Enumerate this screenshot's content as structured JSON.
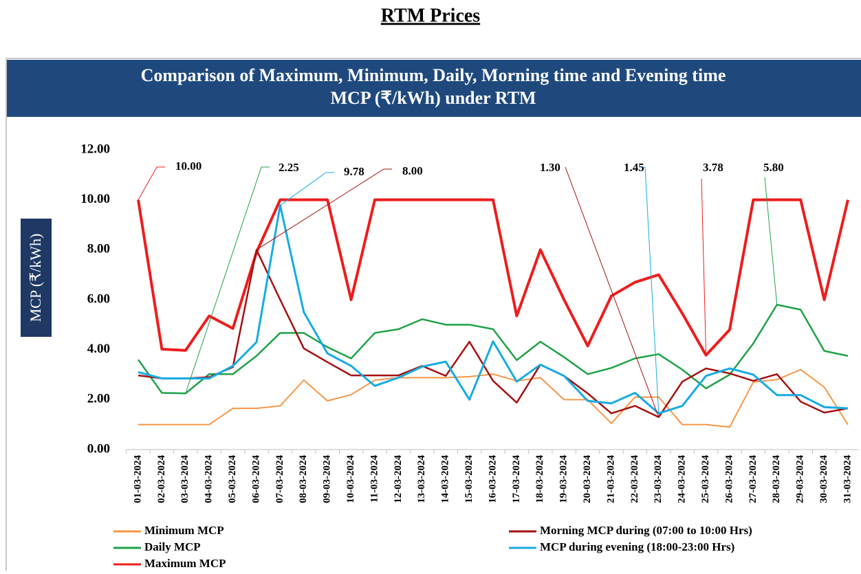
{
  "page_title": "RTM Prices",
  "chart_data": {
    "type": "line",
    "title": [
      "Comparison of Maximum, Minimum, Daily, Morning time and  Evening time",
      "MCP (₹/kWh) under RTM"
    ],
    "y_label": "MCP (₹/kWh)",
    "ylim": [
      0,
      12
    ],
    "yticks": [
      {
        "value": 0,
        "label": "0.00"
      },
      {
        "value": 2,
        "label": "2.00"
      },
      {
        "value": 4,
        "label": "4.00"
      },
      {
        "value": 6,
        "label": "6.00"
      },
      {
        "value": 8,
        "label": "8.00"
      },
      {
        "value": 10,
        "label": "10.00"
      },
      {
        "value": 12,
        "label": "12.00"
      }
    ],
    "categories": [
      "01-03-2024",
      "02-03-2024",
      "03-03-2024",
      "04-03-2024",
      "05-03-2024",
      "06-03-2024",
      "07-03-2024",
      "08-03-2024",
      "09-03-2024",
      "10-03-2024",
      "11-03-2024",
      "12-03-2024",
      "13-03-2024",
      "14-03-2024",
      "15-03-2024",
      "16-03-2024",
      "17-03-2024",
      "18-03-2024",
      "19-03-2024",
      "20-03-2024",
      "21-03-2024",
      "22-03-2024",
      "23-03-2024",
      "24-03-2024",
      "25-03-2024",
      "26-03-2024",
      "27-03-2024",
      "28-03-2024",
      "29-03-2024",
      "30-03-2024",
      "31-03-2024"
    ],
    "series": [
      {
        "name": "Minimum MCP",
        "color": "#f79646",
        "width": 2,
        "values": [
          1,
          1,
          1,
          1,
          1.65,
          1.65,
          1.75,
          2.78,
          1.95,
          2.2,
          2.78,
          2.88,
          2.88,
          2.88,
          2.92,
          3.02,
          2.75,
          2.88,
          2.0,
          2.0,
          1.05,
          2.1,
          2.1,
          1.0,
          1.0,
          0.9,
          2.7,
          2.8,
          3.2,
          2.5,
          1.0
        ]
      },
      {
        "name": "Daily MCP",
        "color": "#1ea245",
        "width": 2.5,
        "values": [
          3.6,
          2.27,
          2.25,
          3.02,
          3.02,
          3.75,
          4.67,
          4.67,
          4.1,
          3.65,
          4.67,
          4.82,
          5.22,
          5.0,
          5.0,
          4.82,
          3.58,
          4.32,
          3.7,
          3.02,
          3.27,
          3.65,
          3.82,
          3.2,
          2.45,
          3.0,
          4.25,
          5.8,
          5.6,
          3.95,
          3.75
        ]
      },
      {
        "name": "Maximum MCP",
        "color": "#ee1c1c",
        "width": 4,
        "values": [
          10,
          4.02,
          3.97,
          5.35,
          4.85,
          7.9,
          10,
          10,
          10,
          6.0,
          10,
          10,
          10,
          10,
          10,
          10,
          5.35,
          8.0,
          6.0,
          4.15,
          6.15,
          6.7,
          7.0,
          5.45,
          3.78,
          4.8,
          10,
          10,
          10,
          6.0,
          10
        ]
      },
      {
        "name": "Morning MCP  during (07:00 to 10:00 Hrs)",
        "color": "#a50f0f",
        "width": 2.5,
        "values": [
          2.97,
          2.85,
          2.85,
          2.9,
          3.3,
          8.0,
          6.0,
          4.05,
          3.5,
          2.97,
          2.97,
          2.97,
          3.35,
          2.95,
          4.32,
          2.75,
          1.88,
          3.4,
          2.95,
          2.25,
          1.45,
          1.75,
          1.3,
          2.72,
          3.25,
          3.05,
          2.75,
          3.02,
          1.92,
          1.48,
          1.65
        ]
      },
      {
        "name": "MCP  during evening (18:00-23:00 Hrs)",
        "color": "#16abe3",
        "width": 3,
        "values": [
          3.1,
          2.85,
          2.85,
          2.85,
          3.35,
          4.3,
          9.78,
          5.5,
          3.85,
          3.35,
          2.55,
          2.88,
          3.32,
          3.52,
          2.0,
          4.33,
          2.72,
          3.4,
          2.95,
          1.95,
          1.85,
          2.27,
          1.45,
          1.75,
          2.95,
          3.25,
          3.0,
          2.18,
          2.18,
          1.7,
          1.65
        ]
      }
    ],
    "annotations": [
      "10.00",
      "2.25",
      "9.78",
      "8.00",
      "1.30",
      "1.45",
      "3.78",
      "5.80"
    ]
  }
}
